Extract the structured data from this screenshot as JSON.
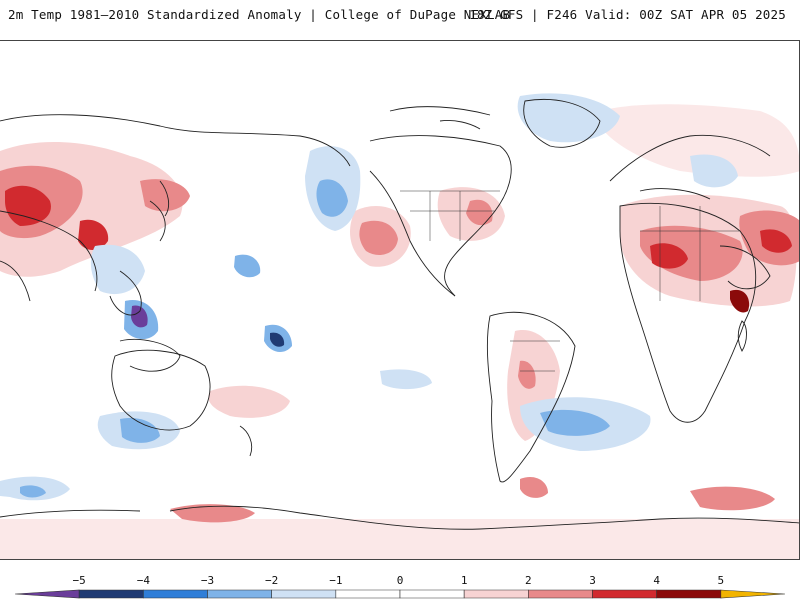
{
  "header": {
    "left_title": "2m Temp 1981–2010 Standardized Anomaly | College of DuPage NEXLAB",
    "right_title": "18Z GFS | F246 Valid: 00Z SAT APR 05 2025"
  },
  "map": {
    "projection": "cylindrical equidistant, Pacific-centered",
    "variable": "2m temperature standardized anomaly"
  },
  "colorbar": {
    "ticks": [
      "−5",
      "−4",
      "−3",
      "−2",
      "−1",
      "0",
      "1",
      "2",
      "3",
      "4",
      "5"
    ],
    "colors": [
      "#6a3d9a",
      "#1f3a73",
      "#2f7ed8",
      "#7fb3e8",
      "#cfe1f4",
      "#ffffff",
      "#ffffff",
      "#f7d3d3",
      "#e8898a",
      "#d12a2f",
      "#8b0a0a",
      "#f2b400"
    ]
  }
}
